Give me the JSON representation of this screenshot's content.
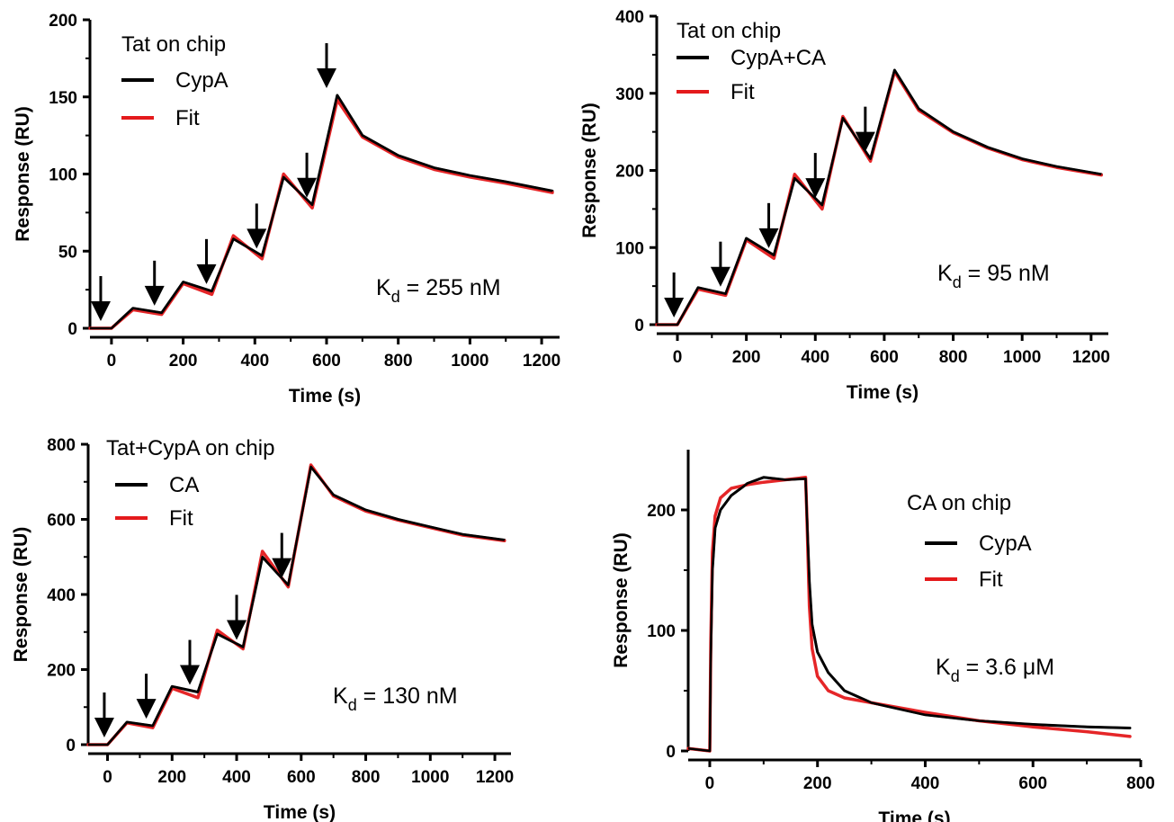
{
  "chart_data": [
    {
      "type": "line",
      "title": "",
      "xlabel": "Time (s)",
      "ylabel": "Response (RU)",
      "xlim": [
        -60,
        1250
      ],
      "ylim": [
        0,
        200
      ],
      "xticks": [
        0,
        200,
        400,
        600,
        800,
        1000,
        1200
      ],
      "yticks": [
        0,
        50,
        100,
        150,
        200
      ],
      "annotation": "Tat on chip",
      "kd": {
        "main": "K",
        "sub": "d",
        "rest": " = 255 nM"
      },
      "legend_placement": "top-left",
      "arrows_at": [
        -30,
        120,
        265,
        405,
        545,
        600
      ],
      "injections": [
        0,
        140,
        280,
        420,
        560
      ],
      "dissociation_start": 630,
      "end": 1230,
      "series": [
        {
          "name": "CypA",
          "color": "#000000",
          "points": [
            [
              -60,
              0
            ],
            [
              0,
              0
            ],
            [
              60,
              13
            ],
            [
              140,
              10
            ],
            [
              200,
              30
            ],
            [
              280,
              24
            ],
            [
              340,
              58
            ],
            [
              420,
              47
            ],
            [
              480,
              98
            ],
            [
              560,
              80
            ],
            [
              630,
              151
            ],
            [
              700,
              125
            ],
            [
              800,
              112
            ],
            [
              900,
              104
            ],
            [
              1000,
              99
            ],
            [
              1100,
              95
            ],
            [
              1230,
              89
            ]
          ]
        },
        {
          "name": "Fit",
          "color": "#e41a1c",
          "points": [
            [
              -60,
              0
            ],
            [
              0,
              0
            ],
            [
              60,
              12
            ],
            [
              140,
              9
            ],
            [
              200,
              29
            ],
            [
              280,
              22
            ],
            [
              340,
              60
            ],
            [
              420,
              45
            ],
            [
              480,
              100
            ],
            [
              560,
              78
            ],
            [
              630,
              148
            ],
            [
              700,
              124
            ],
            [
              800,
              111
            ],
            [
              900,
              103
            ],
            [
              1000,
              98
            ],
            [
              1100,
              94
            ],
            [
              1230,
              88
            ]
          ]
        }
      ]
    },
    {
      "type": "line",
      "title": "",
      "xlabel": "Time (s)",
      "ylabel": "Response (RU)",
      "xlim": [
        -60,
        1250
      ],
      "ylim": [
        0,
        400
      ],
      "xticks": [
        0,
        200,
        400,
        600,
        800,
        1000,
        1200
      ],
      "yticks": [
        0,
        100,
        200,
        300,
        400
      ],
      "annotation": "Tat on chip",
      "kd": {
        "main": "K",
        "sub": "d",
        "rest": " = 95 nM"
      },
      "legend_placement": "top-left",
      "arrows_at": [
        -10,
        125,
        265,
        400,
        545
      ],
      "series": [
        {
          "name": "CypA+CA",
          "color": "#000000",
          "points": [
            [
              -60,
              0
            ],
            [
              0,
              0
            ],
            [
              60,
              48
            ],
            [
              140,
              40
            ],
            [
              200,
              112
            ],
            [
              280,
              90
            ],
            [
              340,
              190
            ],
            [
              420,
              155
            ],
            [
              480,
              268
            ],
            [
              560,
              215
            ],
            [
              630,
              330
            ],
            [
              700,
              280
            ],
            [
              800,
              250
            ],
            [
              900,
              230
            ],
            [
              1000,
              215
            ],
            [
              1100,
              205
            ],
            [
              1230,
              195
            ]
          ]
        },
        {
          "name": "Fit",
          "color": "#e41a1c",
          "points": [
            [
              -60,
              0
            ],
            [
              0,
              0
            ],
            [
              60,
              46
            ],
            [
              140,
              38
            ],
            [
              200,
              110
            ],
            [
              280,
              86
            ],
            [
              340,
              195
            ],
            [
              420,
              150
            ],
            [
              480,
              270
            ],
            [
              560,
              212
            ],
            [
              630,
              328
            ],
            [
              700,
              278
            ],
            [
              800,
              249
            ],
            [
              900,
              229
            ],
            [
              1000,
              214
            ],
            [
              1100,
              204
            ],
            [
              1230,
              194
            ]
          ]
        }
      ]
    },
    {
      "type": "line",
      "title": "",
      "xlabel": "Time (s)",
      "ylabel": "Response (RU)",
      "xlim": [
        -60,
        1250
      ],
      "ylim": [
        0,
        800
      ],
      "xticks": [
        0,
        200,
        400,
        600,
        800,
        1000,
        1200
      ],
      "yticks": [
        0,
        200,
        400,
        600,
        800
      ],
      "annotation": "Tat+CypA on chip",
      "kd": {
        "main": "K",
        "sub": "d",
        "rest": " = 130 nM"
      },
      "legend_placement": "top-left",
      "arrows_at": [
        -10,
        120,
        255,
        400,
        540
      ],
      "series": [
        {
          "name": "CA",
          "color": "#000000",
          "points": [
            [
              -60,
              0
            ],
            [
              0,
              0
            ],
            [
              60,
              60
            ],
            [
              140,
              50
            ],
            [
              200,
              155
            ],
            [
              280,
              140
            ],
            [
              340,
              295
            ],
            [
              420,
              260
            ],
            [
              480,
              500
            ],
            [
              560,
              425
            ],
            [
              630,
              740
            ],
            [
              700,
              665
            ],
            [
              800,
              625
            ],
            [
              900,
              600
            ],
            [
              1000,
              580
            ],
            [
              1100,
              560
            ],
            [
              1230,
              545
            ]
          ]
        },
        {
          "name": "Fit",
          "color": "#e41a1c",
          "points": [
            [
              -60,
              0
            ],
            [
              0,
              0
            ],
            [
              60,
              58
            ],
            [
              140,
              45
            ],
            [
              200,
              150
            ],
            [
              280,
              125
            ],
            [
              340,
              305
            ],
            [
              420,
              255
            ],
            [
              480,
              515
            ],
            [
              560,
              420
            ],
            [
              630,
              745
            ],
            [
              700,
              662
            ],
            [
              800,
              622
            ],
            [
              900,
              598
            ],
            [
              1000,
              578
            ],
            [
              1100,
              558
            ],
            [
              1230,
              543
            ]
          ]
        }
      ]
    },
    {
      "type": "line",
      "title": "",
      "xlabel": "Time (s)",
      "ylabel": "Response (RU)",
      "xlim": [
        -40,
        800
      ],
      "ylim": [
        0,
        250
      ],
      "xticks": [
        0,
        200,
        400,
        600,
        800
      ],
      "yticks": [
        0,
        100,
        200
      ],
      "annotation": "CA on chip",
      "kd": {
        "main": "K",
        "sub": "d",
        "rest": " = 3.6 μM"
      },
      "legend_placement": "top-right",
      "arrows_at": [],
      "series": [
        {
          "name": "CypA",
          "color": "#000000",
          "points": [
            [
              -40,
              2
            ],
            [
              0,
              0
            ],
            [
              2,
              80
            ],
            [
              5,
              150
            ],
            [
              10,
              185
            ],
            [
              20,
              200
            ],
            [
              40,
              212
            ],
            [
              70,
              222
            ],
            [
              100,
              227
            ],
            [
              140,
              225
            ],
            [
              178,
              226
            ],
            [
              180,
              200
            ],
            [
              185,
              140
            ],
            [
              190,
              105
            ],
            [
              200,
              82
            ],
            [
              220,
              65
            ],
            [
              250,
              50
            ],
            [
              300,
              40
            ],
            [
              400,
              30
            ],
            [
              500,
              25
            ],
            [
              600,
              22
            ],
            [
              700,
              20
            ],
            [
              780,
              19
            ]
          ]
        },
        {
          "name": "Fit",
          "color": "#e41a1c",
          "points": [
            [
              -40,
              2
            ],
            [
              0,
              0
            ],
            [
              2,
              90
            ],
            [
              5,
              165
            ],
            [
              10,
              195
            ],
            [
              20,
              210
            ],
            [
              40,
              218
            ],
            [
              70,
              221
            ],
            [
              100,
              223
            ],
            [
              140,
              225
            ],
            [
              178,
              227
            ],
            [
              180,
              200
            ],
            [
              185,
              120
            ],
            [
              190,
              85
            ],
            [
              200,
              62
            ],
            [
              220,
              50
            ],
            [
              250,
              44
            ],
            [
              300,
              40
            ],
            [
              400,
              32
            ],
            [
              500,
              25
            ],
            [
              600,
              20
            ],
            [
              700,
              16
            ],
            [
              780,
              12
            ]
          ]
        }
      ]
    }
  ]
}
